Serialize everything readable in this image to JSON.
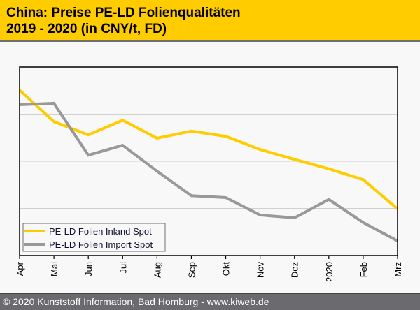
{
  "header": {
    "title_line1": "China: Preise PE-LD Folienqualitäten",
    "title_line2": "2019 - 2020 (in CNY/t, FD)"
  },
  "footer": {
    "copyright": "© 2020 Kunststoff Information, Bad Homburg - www.kiweb.de"
  },
  "colors": {
    "header_bg": "#ffcc00",
    "footer_bg": "#6b6b6f",
    "inland": "#ffcc00",
    "import": "#999999",
    "grid": "#d0d0d0"
  },
  "chart_data": {
    "type": "line",
    "title": "China: Preise PE-LD Folienqualitäten 2019 - 2020 (in CNY/t, FD)",
    "xlabel": "",
    "ylabel": "",
    "y_units_note": "no y tick labels shown; values in relative gridline units (0 = bottom axis, 4 = top of plot)",
    "ylim": [
      0,
      4
    ],
    "gridlines": [
      1,
      2,
      3
    ],
    "grid": true,
    "legend_position": "bottom-left",
    "categories": [
      "Apr",
      "Mai",
      "Jun",
      "Jul",
      "Aug",
      "Sep",
      "Okt",
      "Nov",
      "Dez",
      "2020",
      "Feb",
      "Mrz"
    ],
    "series": [
      {
        "name": "PE-LD Folien Inland Spot",
        "color": "#ffcc00",
        "values": [
          3.51,
          2.84,
          2.56,
          2.87,
          2.49,
          2.64,
          2.53,
          2.25,
          2.04,
          1.84,
          1.61,
          0.99
        ]
      },
      {
        "name": "PE-LD Folien Import Spot",
        "color": "#999999",
        "values": [
          3.2,
          3.23,
          2.13,
          2.34,
          1.79,
          1.27,
          1.23,
          0.86,
          0.8,
          1.19,
          0.7,
          0.31
        ]
      }
    ]
  }
}
